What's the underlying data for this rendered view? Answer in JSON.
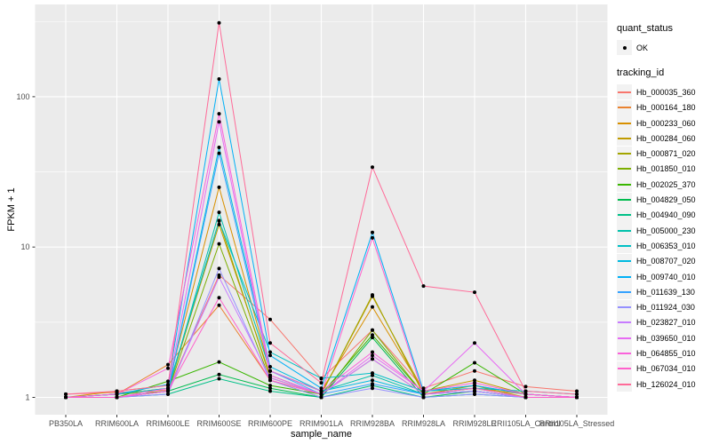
{
  "figure": {
    "panel_bg": "#EBEBEB",
    "grid_color": "#FFFFFF",
    "key_bg": "#F2F2F2",
    "tick_color": "#333333",
    "tick_label_color": "#4D4D4D",
    "point_color": "#000000"
  },
  "axes": {
    "x_title": "sample_name",
    "y_title": "FPKM + 1",
    "y_tick_labels": [
      "1",
      "10",
      "100"
    ],
    "y_tick_values": [
      1,
      10,
      100
    ],
    "y_minor_values": [
      3.1623,
      31.623,
      316.23
    ]
  },
  "legend": {
    "quant_title": "quant_status",
    "quant_label": "OK",
    "tracking_title": "tracking_id"
  },
  "chart_data": {
    "type": "line",
    "xlabel": "sample_name",
    "ylabel": "FPKM + 1",
    "y_scale": "log10",
    "ylim": [
      0.9,
      380
    ],
    "grid": true,
    "legend_position": "right",
    "quant_status": "OK",
    "categories": [
      "PB350LA",
      "RRIM600LA",
      "RRIM600LE",
      "RRIM600SE",
      "RRIM600PE",
      "RRIM901LA",
      "RRIM928BA",
      "RRIM928LA",
      "RRIM928LE",
      "RRII105LA_Control",
      "RRII105LA_Stressed"
    ],
    "series": [
      {
        "name": "Hb_000035_360",
        "color": "#F8766D",
        "values": [
          1.05,
          1.08,
          1.12,
          6.5,
          3.3,
          1.33,
          2.8,
          1.15,
          1.5,
          1.18,
          1.1
        ]
      },
      {
        "name": "Hb_000164_180",
        "color": "#EA8331",
        "values": [
          1.0,
          1.05,
          1.65,
          4.1,
          1.3,
          1.05,
          1.8,
          1.05,
          1.15,
          1.05,
          1.0
        ]
      },
      {
        "name": "Hb_000233_060",
        "color": "#D89000",
        "values": [
          1.0,
          1.1,
          1.2,
          25,
          1.5,
          1.1,
          4.0,
          1.1,
          1.2,
          1.05,
          1.0
        ]
      },
      {
        "name": "Hb_000284_060",
        "color": "#C09B00",
        "values": [
          1.0,
          1.05,
          1.15,
          14.1,
          1.4,
          1.05,
          4.7,
          1.1,
          1.3,
          1.05,
          1.0
        ]
      },
      {
        "name": "Hb_000871_020",
        "color": "#A3A500",
        "values": [
          1.0,
          1.05,
          1.1,
          15,
          1.35,
          1.05,
          4.8,
          1.05,
          1.2,
          1.0,
          1.0
        ]
      },
      {
        "name": "Hb_001850_010",
        "color": "#7CAE00",
        "values": [
          1.0,
          1.0,
          1.1,
          10.5,
          1.3,
          1.0,
          2.8,
          1.05,
          1.15,
          1.0,
          1.0
        ]
      },
      {
        "name": "Hb_002025_370",
        "color": "#39B600",
        "values": [
          1.0,
          1.0,
          1.28,
          1.72,
          1.2,
          1.05,
          2.6,
          1.05,
          1.7,
          1.05,
          1.0
        ]
      },
      {
        "name": "Hb_004829_050",
        "color": "#00BB4E",
        "values": [
          1.0,
          1.0,
          1.1,
          1.42,
          1.15,
          1.0,
          2.5,
          1.0,
          1.1,
          1.0,
          1.0
        ]
      },
      {
        "name": "Hb_004940_090",
        "color": "#00C087",
        "values": [
          1.0,
          1.0,
          1.05,
          1.33,
          1.1,
          1.0,
          1.2,
          1.0,
          1.05,
          1.0,
          1.0
        ]
      },
      {
        "name": "Hb_005000_230",
        "color": "#00C1AB",
        "values": [
          1.0,
          1.0,
          1.1,
          17,
          1.5,
          1.1,
          1.4,
          1.05,
          1.1,
          1.0,
          1.0
        ]
      },
      {
        "name": "Hb_006353_010",
        "color": "#00BFC4",
        "values": [
          1.0,
          1.05,
          1.15,
          14.9,
          2.0,
          1.34,
          1.45,
          1.1,
          1.15,
          1.1,
          1.05
        ]
      },
      {
        "name": "Hb_008707_020",
        "color": "#00BAE0",
        "values": [
          1.0,
          1.0,
          1.1,
          46,
          1.6,
          1.1,
          1.3,
          1.05,
          1.1,
          1.0,
          1.0
        ]
      },
      {
        "name": "Hb_009740_010",
        "color": "#00B0F6",
        "values": [
          1.0,
          1.05,
          1.22,
          131,
          1.9,
          1.15,
          12.5,
          1.1,
          1.2,
          1.05,
          1.0
        ]
      },
      {
        "name": "Hb_011639_130",
        "color": "#35A2FF",
        "values": [
          1.0,
          1.0,
          1.1,
          42,
          1.5,
          1.05,
          1.23,
          1.05,
          1.1,
          1.0,
          1.0
        ]
      },
      {
        "name": "Hb_011924_030",
        "color": "#9590FF",
        "values": [
          1.0,
          1.0,
          1.05,
          7.2,
          1.3,
          1.0,
          1.15,
          1.0,
          1.05,
          1.0,
          1.0
        ]
      },
      {
        "name": "Hb_023827_010",
        "color": "#C77CFF",
        "values": [
          1.0,
          1.0,
          1.1,
          6.3,
          1.35,
          1.05,
          1.8,
          1.05,
          1.1,
          1.0,
          1.0
        ]
      },
      {
        "name": "Hb_039650_010",
        "color": "#E76BF3",
        "values": [
          1.0,
          1.0,
          1.15,
          68,
          1.4,
          1.05,
          1.9,
          1.1,
          2.3,
          1.05,
          1.0
        ]
      },
      {
        "name": "Hb_064855_010",
        "color": "#FA62DB",
        "values": [
          1.0,
          1.05,
          1.56,
          77,
          1.5,
          1.1,
          2.0,
          1.1,
          1.25,
          1.05,
          1.0
        ]
      },
      {
        "name": "Hb_067034_010",
        "color": "#FF61CC",
        "values": [
          1.0,
          1.0,
          1.1,
          4.6,
          1.3,
          1.05,
          11.5,
          1.05,
          1.15,
          1.0,
          1.0
        ]
      },
      {
        "name": "Hb_126024_010",
        "color": "#FF6A98",
        "values": [
          1.05,
          1.1,
          1.2,
          310,
          2.3,
          1.25,
          34,
          5.5,
          5.0,
          1.1,
          1.05
        ]
      }
    ]
  }
}
